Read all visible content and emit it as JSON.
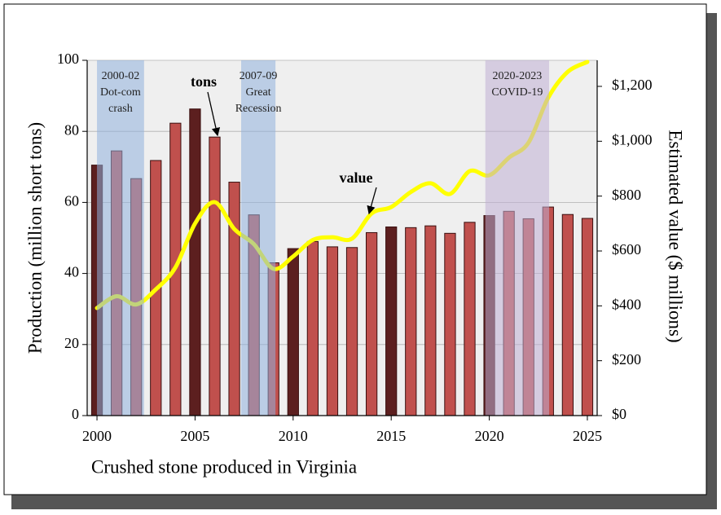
{
  "chart_data": {
    "type": "bar-line",
    "xlabel": "Crushed stone produced in Virginia",
    "ylabel": "Production (million short tons)",
    "y2label": "Estimated value ($ millions)",
    "x": [
      2000,
      2001,
      2002,
      2003,
      2004,
      2005,
      2006,
      2007,
      2008,
      2009,
      2010,
      2011,
      2012,
      2013,
      2014,
      2015,
      2016,
      2017,
      2018,
      2019,
      2020,
      2021,
      2022,
      2023,
      2024,
      2025
    ],
    "xlim": [
      1999.5,
      2025.5
    ],
    "xticks": [
      2000,
      2005,
      2010,
      2015,
      2020,
      2025
    ],
    "ylim": [
      0,
      100
    ],
    "yticks": [
      0,
      20,
      40,
      60,
      80,
      100
    ],
    "y2lim": [
      0,
      1295
    ],
    "y2ticks": [
      {
        "value": 0,
        "label": "$0"
      },
      {
        "value": 200,
        "label": "$200"
      },
      {
        "value": 400,
        "label": "$400"
      },
      {
        "value": 600,
        "label": "$600"
      },
      {
        "value": 800,
        "label": "$800"
      },
      {
        "value": 1000,
        "label": "$1,000"
      },
      {
        "value": 1200,
        "label": "$1,200"
      }
    ],
    "grid": true,
    "series": [
      {
        "name": "tons",
        "type": "bar",
        "values": [
          70.5,
          74.5,
          66.7,
          71.8,
          82.3,
          86.3,
          78.4,
          65.7,
          56.5,
          43,
          47,
          49,
          47.5,
          47.3,
          51.5,
          53.1,
          52.9,
          53.4,
          51.3,
          54.4,
          56.3,
          57.5,
          55.4,
          58.7,
          56.6,
          55.5
        ],
        "colors": [
          "#5c1f1f",
          "#c0504d",
          "#c0504d",
          "#c0504d",
          "#c0504d",
          "#5c1f1f",
          "#c0504d",
          "#c0504d",
          "#c0504d",
          "#c0504d",
          "#5c1f1f",
          "#c0504d",
          "#c0504d",
          "#c0504d",
          "#c0504d",
          "#5c1f1f",
          "#c0504d",
          "#c0504d",
          "#c0504d",
          "#c0504d",
          "#5c1f1f",
          "#c0504d",
          "#c0504d",
          "#c0504d",
          "#c0504d",
          "#c0504d"
        ]
      },
      {
        "name": "value",
        "type": "line",
        "axis": "y2",
        "color": "#ffff00",
        "values": [
          392,
          435,
          405,
          460,
          540,
          700,
          778,
          680,
          625,
          535,
          580,
          640,
          650,
          645,
          737,
          760,
          815,
          847,
          808,
          891,
          876,
          940,
          995,
          1158,
          1253,
          1289
        ]
      }
    ],
    "shaded_periods": [
      {
        "label": [
          "2000-02",
          "Dot-com",
          "crash"
        ],
        "start": 2000,
        "end": 2002.4,
        "color": "#8fb0dd"
      },
      {
        "label": [
          "2007-09",
          "Great",
          "Recession"
        ],
        "start": 2007.35,
        "end": 2009.1,
        "color": "#8fb0dd"
      },
      {
        "label": [
          "2020-2023",
          "COVID-19"
        ],
        "start": 2019.8,
        "end": 2023.05,
        "color": "#c0aed4"
      }
    ]
  }
}
